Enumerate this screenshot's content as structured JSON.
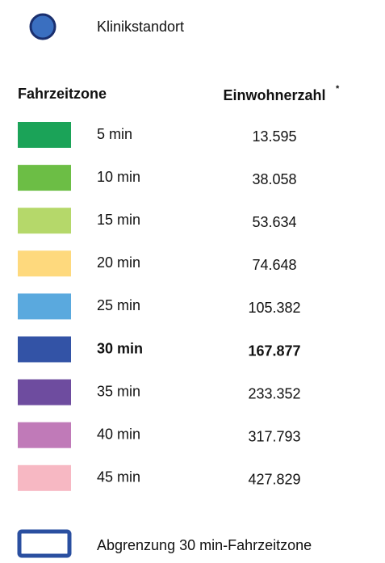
{
  "legend": {
    "site": "Klinikstandort",
    "headers": {
      "zone": "Fahrzeitzone",
      "population": "Einwohnerzahl",
      "footnote_mark": "*"
    },
    "rows": [
      {
        "zone": "5 min",
        "population": "13.595",
        "color": "#1ba358"
      },
      {
        "zone": "10 min",
        "population": "38.058",
        "color": "#6cbe45"
      },
      {
        "zone": "15 min",
        "population": "53.634",
        "color": "#b5d86a"
      },
      {
        "zone": "20 min",
        "population": "74.648",
        "color": "#fed97d"
      },
      {
        "zone": "25 min",
        "population": "105.382",
        "color": "#5aa9de"
      },
      {
        "zone": "30 min",
        "population": "167.877",
        "color": "#3353a6",
        "bold": true
      },
      {
        "zone": "35 min",
        "population": "233.352",
        "color": "#6e4c9f"
      },
      {
        "zone": "40 min",
        "population": "317.793",
        "color": "#c07ab8"
      },
      {
        "zone": "45 min",
        "population": "427.829",
        "color": "#f7b8c3"
      }
    ],
    "boundary": "Abgrenzung 30 min-Fahrzeitzone"
  }
}
